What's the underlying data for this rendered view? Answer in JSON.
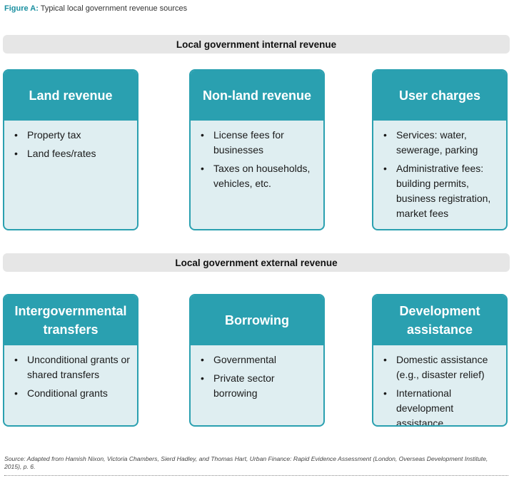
{
  "caption": {
    "label": "Figure A:",
    "text": "Typical local government revenue sources"
  },
  "sections": [
    {
      "title": "Local government internal revenue",
      "cards": [
        {
          "title": "Land revenue",
          "items": [
            "Property tax",
            "Land fees/rates"
          ]
        },
        {
          "title": "Non-land revenue",
          "items": [
            "License fees for businesses",
            "Taxes on households, vehicles, etc."
          ]
        },
        {
          "title": "User charges",
          "items": [
            "Services: water, sewerage, parking",
            "Administrative fees: building permits, business registration, market fees"
          ]
        }
      ]
    },
    {
      "title": "Local government external revenue",
      "cards": [
        {
          "title": "Intergovernmental transfers",
          "items": [
            "Unconditional grants or shared transfers",
            "Conditional grants"
          ]
        },
        {
          "title": "Borrowing",
          "items": [
            "Governmental",
            "Private sector borrowing"
          ]
        },
        {
          "title": "Development assistance",
          "items": [
            "Domestic assistance (e.g., disaster relief)",
            "International development assistance"
          ]
        }
      ]
    }
  ],
  "bullet_char": "•",
  "colors": {
    "accent": "#2aa0b0",
    "card_fill": "#dfeef1",
    "bar_fill": "#e6e6e6"
  },
  "source": "Source: Adapted from Hamish Nixon, Victoria Chambers, Sierd Hadley, and Thomas Hart, Urban Finance: Rapid Evidence Assessment (London, Overseas Development Institute, 2015), p. 6."
}
